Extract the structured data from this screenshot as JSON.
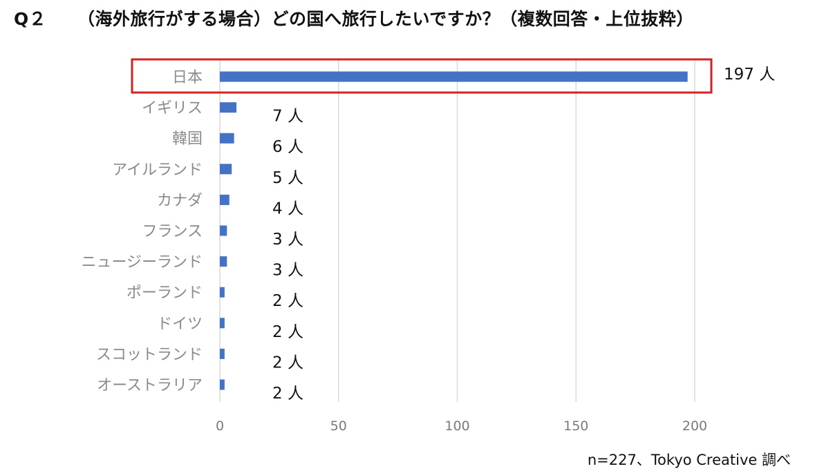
{
  "title": {
    "number": "Q２",
    "text": "（海外旅行がする場合）どの国へ旅行したいですか？（複数回答・上位抜粋）"
  },
  "chart_data": {
    "type": "bar",
    "orientation": "horizontal",
    "categories": [
      "日本",
      "イギリス",
      "韓国",
      "アイルランド",
      "カナダ",
      "フランス",
      "ニュージーランド",
      "ポーランド",
      "ドイツ",
      "スコットランド",
      "オーストラリア"
    ],
    "values": [
      197,
      7,
      6,
      5,
      4,
      3,
      3,
      2,
      2,
      2,
      2
    ],
    "value_unit": "人",
    "value_labels": [
      "197 人",
      "7 人",
      "6 人",
      "5 人",
      "4 人",
      "3 人",
      "3 人",
      "2 人",
      "2 人",
      "2 人",
      "2 人"
    ],
    "xlim": [
      0,
      200
    ],
    "xticks": [
      0,
      50,
      100,
      150,
      200
    ],
    "xtick_labels": [
      "0",
      "50",
      "100",
      "150",
      "200"
    ],
    "grid": true,
    "highlighted_category": "日本",
    "colors": {
      "bar": "#4472C4",
      "grid": "#D9D9D9",
      "highlight_box": "#D42121"
    }
  },
  "source": "n=227、Tokyo Creative  調べ"
}
